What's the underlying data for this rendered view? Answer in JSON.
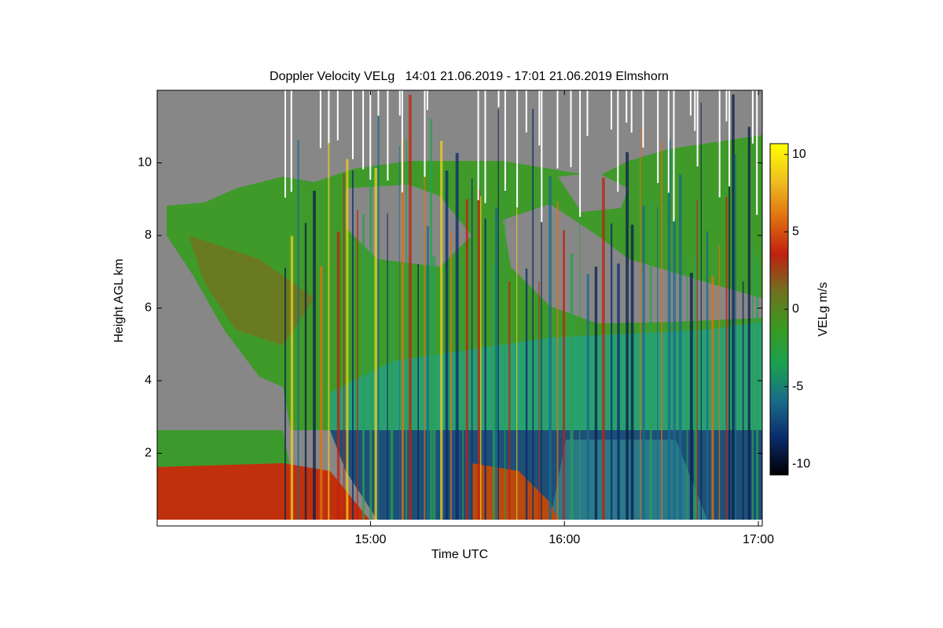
{
  "chart_data": {
    "type": "heatmap",
    "title": "Doppler Velocity VELg   14:01 21.06.2019 - 17:01 21.06.2019 Elmshorn",
    "xlabel": "Time UTC",
    "ylabel": "Height AGL km",
    "xlim": [
      13.9,
      17.02
    ],
    "xticks": [
      {
        "value": 15,
        "label": "15:00"
      },
      {
        "value": 16,
        "label": "16:00"
      },
      {
        "value": 17,
        "label": "17:00"
      }
    ],
    "ylim": [
      0,
      12
    ],
    "yticks": [
      2,
      4,
      6,
      8,
      10
    ],
    "colorbar": {
      "label": "VELg m/s",
      "clim": [
        -10.7,
        10.7
      ],
      "ticks": [
        -10,
        -5,
        0,
        5,
        10
      ],
      "colors": [
        "#000000",
        "#0a2a6a",
        "#1a6a8a",
        "#1aa050",
        "#3a9a20",
        "#707020",
        "#c02010",
        "#e07010",
        "#f0c020",
        "#ffff00"
      ]
    }
  }
}
